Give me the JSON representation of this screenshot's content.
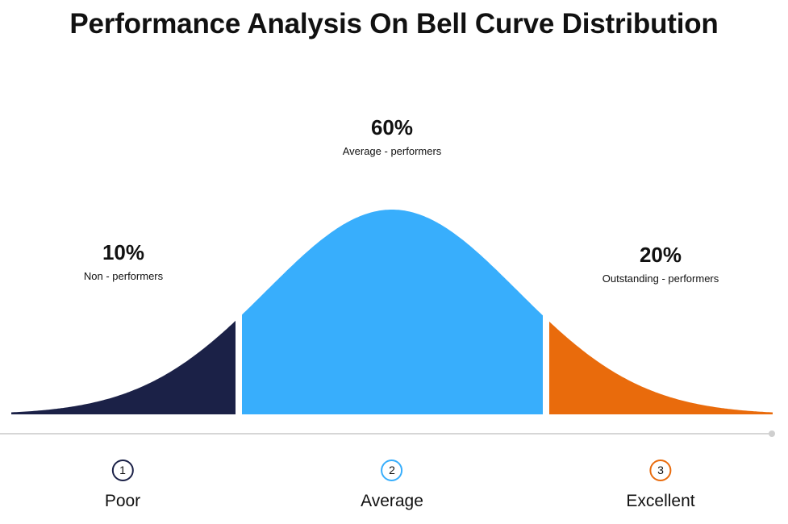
{
  "title": "Performance Analysis On Bell Curve Distribution",
  "segments": [
    {
      "percent": "10%",
      "label": "Non - performers",
      "color": "#1b2147"
    },
    {
      "percent": "60%",
      "label": "Average - performers",
      "color": "#38aefc"
    },
    {
      "percent": "20%",
      "label": "Outstanding - performers",
      "color": "#e96b0c"
    }
  ],
  "categories": [
    {
      "number": "1",
      "name": "Poor",
      "ring_color": "#1b2147"
    },
    {
      "number": "2",
      "name": "Average",
      "ring_color": "#38aefc"
    },
    {
      "number": "3",
      "name": "Excellent",
      "ring_color": "#e96b0c"
    }
  ]
}
